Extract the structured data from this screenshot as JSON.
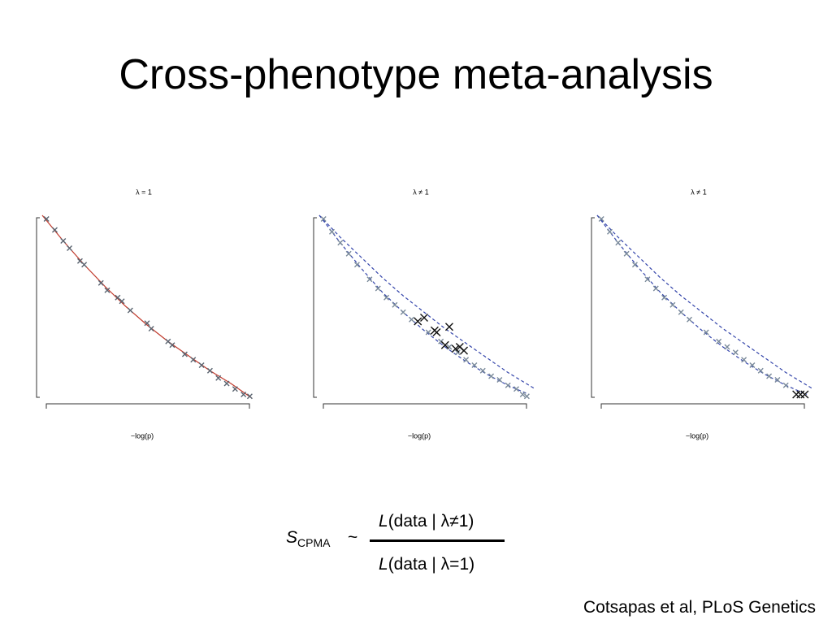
{
  "title": "Cross-phenotype meta-analysis",
  "chart_data": [
    {
      "type": "scatter",
      "title": "λ = 1",
      "x_label": "−log(p)",
      "xlim": [
        0,
        1
      ],
      "ylim": [
        0,
        1
      ],
      "series": [
        {
          "kind": "line",
          "color": "#c0392b",
          "dash": false,
          "x": [
            0,
            0.1,
            0.2,
            0.3,
            0.4,
            0.5,
            0.6,
            0.7,
            0.8,
            0.9,
            1
          ],
          "values": [
            1,
            0.86,
            0.73,
            0.61,
            0.5,
            0.4,
            0.31,
            0.23,
            0.15,
            0.08,
            0
          ]
        },
        {
          "kind": "points",
          "color": "#5a6470",
          "x": [
            0.02,
            0.06,
            0.1,
            0.13,
            0.18,
            0.2,
            0.28,
            0.31,
            0.36,
            0.38,
            0.42,
            0.5,
            0.52,
            0.6,
            0.62,
            0.68,
            0.72,
            0.76,
            0.8,
            0.84,
            0.88,
            0.92,
            0.96,
            0.99
          ],
          "values": [
            0.98,
            0.92,
            0.86,
            0.82,
            0.75,
            0.73,
            0.63,
            0.59,
            0.55,
            0.53,
            0.48,
            0.41,
            0.38,
            0.31,
            0.29,
            0.24,
            0.21,
            0.18,
            0.15,
            0.11,
            0.08,
            0.05,
            0.02,
            0.01
          ]
        }
      ]
    },
    {
      "type": "scatter",
      "title": "λ ≠ 1",
      "x_label": "−log(p)",
      "xlim": [
        0,
        1
      ],
      "ylim": [
        0,
        1
      ],
      "series": [
        {
          "kind": "line",
          "color": "#3344aa",
          "dash": true,
          "x": [
            0,
            0.1,
            0.2,
            0.3,
            0.4,
            0.5,
            0.6,
            0.7,
            0.8,
            0.9,
            1
          ],
          "values": [
            1,
            0.85,
            0.71,
            0.58,
            0.47,
            0.37,
            0.28,
            0.2,
            0.13,
            0.07,
            0.02
          ]
        },
        {
          "kind": "line",
          "color": "#3344aa",
          "dash": true,
          "x": [
            0,
            0.1,
            0.2,
            0.3,
            0.4,
            0.5,
            0.6,
            0.7,
            0.8,
            0.9,
            1.03
          ],
          "values": [
            1,
            0.88,
            0.77,
            0.66,
            0.56,
            0.47,
            0.38,
            0.3,
            0.22,
            0.14,
            0.05
          ]
        },
        {
          "kind": "points",
          "color": "#7a8a9a",
          "x": [
            0.02,
            0.06,
            0.1,
            0.14,
            0.18,
            0.24,
            0.28,
            0.32,
            0.36,
            0.4,
            0.44,
            0.52,
            0.58,
            0.62,
            0.66,
            0.7,
            0.74,
            0.78,
            0.82,
            0.86,
            0.9,
            0.94,
            0.97,
            0.99
          ],
          "values": [
            0.98,
            0.91,
            0.85,
            0.79,
            0.73,
            0.65,
            0.6,
            0.55,
            0.51,
            0.47,
            0.43,
            0.36,
            0.31,
            0.28,
            0.25,
            0.21,
            0.18,
            0.15,
            0.12,
            0.1,
            0.07,
            0.05,
            0.02,
            0.01
          ]
        },
        {
          "kind": "points",
          "color": "#111111",
          "x": [
            0.47,
            0.5,
            0.55,
            0.56,
            0.62,
            0.6,
            0.65,
            0.67,
            0.69
          ],
          "values": [
            0.42,
            0.44,
            0.37,
            0.36,
            0.39,
            0.29,
            0.27,
            0.28,
            0.26
          ]
        }
      ]
    },
    {
      "type": "scatter",
      "title": "λ ≠ 1",
      "x_label": "−log(p)",
      "xlim": [
        0,
        1
      ],
      "ylim": [
        0,
        1
      ],
      "series": [
        {
          "kind": "line",
          "color": "#3344aa",
          "dash": true,
          "x": [
            0,
            0.1,
            0.2,
            0.3,
            0.4,
            0.5,
            0.6,
            0.7,
            0.8,
            0.9,
            1
          ],
          "values": [
            1,
            0.85,
            0.71,
            0.58,
            0.47,
            0.37,
            0.28,
            0.2,
            0.13,
            0.07,
            0.02
          ]
        },
        {
          "kind": "line",
          "color": "#3344aa",
          "dash": true,
          "x": [
            0,
            0.1,
            0.2,
            0.3,
            0.4,
            0.5,
            0.6,
            0.7,
            0.8,
            0.9,
            1.03
          ],
          "values": [
            1,
            0.88,
            0.77,
            0.66,
            0.56,
            0.47,
            0.38,
            0.3,
            0.22,
            0.14,
            0.05
          ]
        },
        {
          "kind": "points",
          "color": "#7a8a9a",
          "x": [
            0.02,
            0.06,
            0.1,
            0.14,
            0.18,
            0.24,
            0.28,
            0.32,
            0.36,
            0.4,
            0.44,
            0.52,
            0.58,
            0.62,
            0.66,
            0.7,
            0.74,
            0.78,
            0.82,
            0.86,
            0.9
          ],
          "values": [
            0.98,
            0.91,
            0.85,
            0.79,
            0.73,
            0.65,
            0.6,
            0.55,
            0.51,
            0.47,
            0.43,
            0.36,
            0.31,
            0.28,
            0.25,
            0.21,
            0.18,
            0.15,
            0.12,
            0.1,
            0.07
          ]
        },
        {
          "kind": "points",
          "color": "#111111",
          "x": [
            0.95,
            0.97,
            0.99
          ],
          "values": [
            0.02,
            0.02,
            0.02
          ]
        }
      ]
    }
  ],
  "formula": {
    "symbol": "S",
    "subscript": "CPMA",
    "relation": "~",
    "numerator_var": "L",
    "numerator": "(data | λ≠1)",
    "denominator_var": "L",
    "denominator": "(data | λ=1)"
  },
  "citation": "Cotsapas et al, PLoS Genetics"
}
